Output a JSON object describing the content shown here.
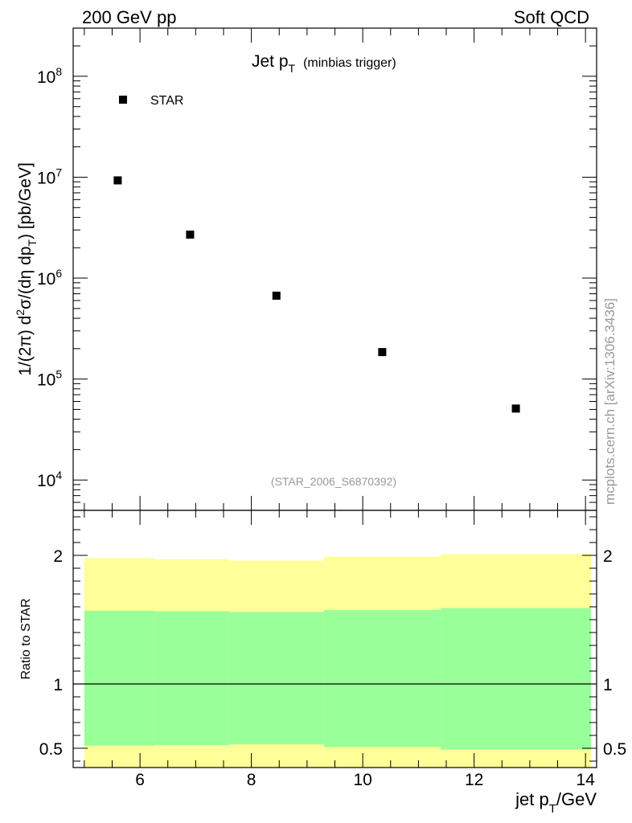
{
  "header": {
    "left": "200 GeV pp",
    "right": "Soft QCD"
  },
  "side_label": "mcplots.cern.ch [arXiv:1306.3436]",
  "chart_data": [
    {
      "type": "scatter",
      "title": "Jet p",
      "title_sub": "T",
      "title_note": "(minbias trigger)",
      "ylabel_parts": [
        "1/(2π) d",
        "2",
        "σ/(dη dp",
        "T",
        ") [pb/GeV]"
      ],
      "yscale": "log",
      "xlim": [
        4.8,
        14.2
      ],
      "ylim": [
        5000,
        300000000
      ],
      "y_ticks": [
        {
          "value": 10000,
          "base": "10",
          "exp": "4"
        },
        {
          "value": 100000,
          "base": "10",
          "exp": "5"
        },
        {
          "value": 1000000,
          "base": "10",
          "exp": "6"
        },
        {
          "value": 10000000,
          "base": "10",
          "exp": "7"
        },
        {
          "value": 100000000,
          "base": "10",
          "exp": "8"
        }
      ],
      "legend": {
        "entries": [
          "STAR"
        ],
        "placement": "top-left"
      },
      "series": [
        {
          "name": "STAR",
          "x": [
            5.6,
            6.9,
            8.45,
            10.35,
            12.75
          ],
          "y": [
            9300000,
            2700000,
            670000,
            185000,
            51000
          ]
        }
      ],
      "annotation": "(STAR_2006_S6870392)"
    },
    {
      "type": "area",
      "ylabel": "Ratio to STAR",
      "xlabel_parts": [
        "jet p",
        "T",
        "/GeV"
      ],
      "xlim": [
        4.8,
        14.2
      ],
      "ylim": [
        0.35,
        2.35
      ],
      "x_tick_labels": [
        "6",
        "8",
        "10",
        "12",
        "14"
      ],
      "y_tick_labels": [
        "0.5",
        "1",
        "2"
      ],
      "reference_line": 1,
      "bins": [
        {
          "x0": 5.0,
          "x1": 6.25,
          "inner_lo": 0.52,
          "inner_hi": 1.57,
          "outer_lo": 0.35,
          "outer_hi": 1.98
        },
        {
          "x0": 6.25,
          "x1": 7.6,
          "inner_lo": 0.525,
          "inner_hi": 1.565,
          "outer_lo": 0.35,
          "outer_hi": 1.97
        },
        {
          "x0": 7.6,
          "x1": 9.3,
          "inner_lo": 0.53,
          "inner_hi": 1.56,
          "outer_lo": 0.35,
          "outer_hi": 1.96
        },
        {
          "x0": 9.3,
          "x1": 11.4,
          "inner_lo": 0.51,
          "inner_hi": 1.575,
          "outer_lo": 0.35,
          "outer_hi": 1.99
        },
        {
          "x0": 11.4,
          "x1": 14.1,
          "inner_lo": 0.49,
          "inner_hi": 1.59,
          "outer_lo": 0.35,
          "outer_hi": 2.01
        }
      ],
      "colors": {
        "inner": "#99ff99",
        "outer": "#ffff99"
      }
    }
  ]
}
